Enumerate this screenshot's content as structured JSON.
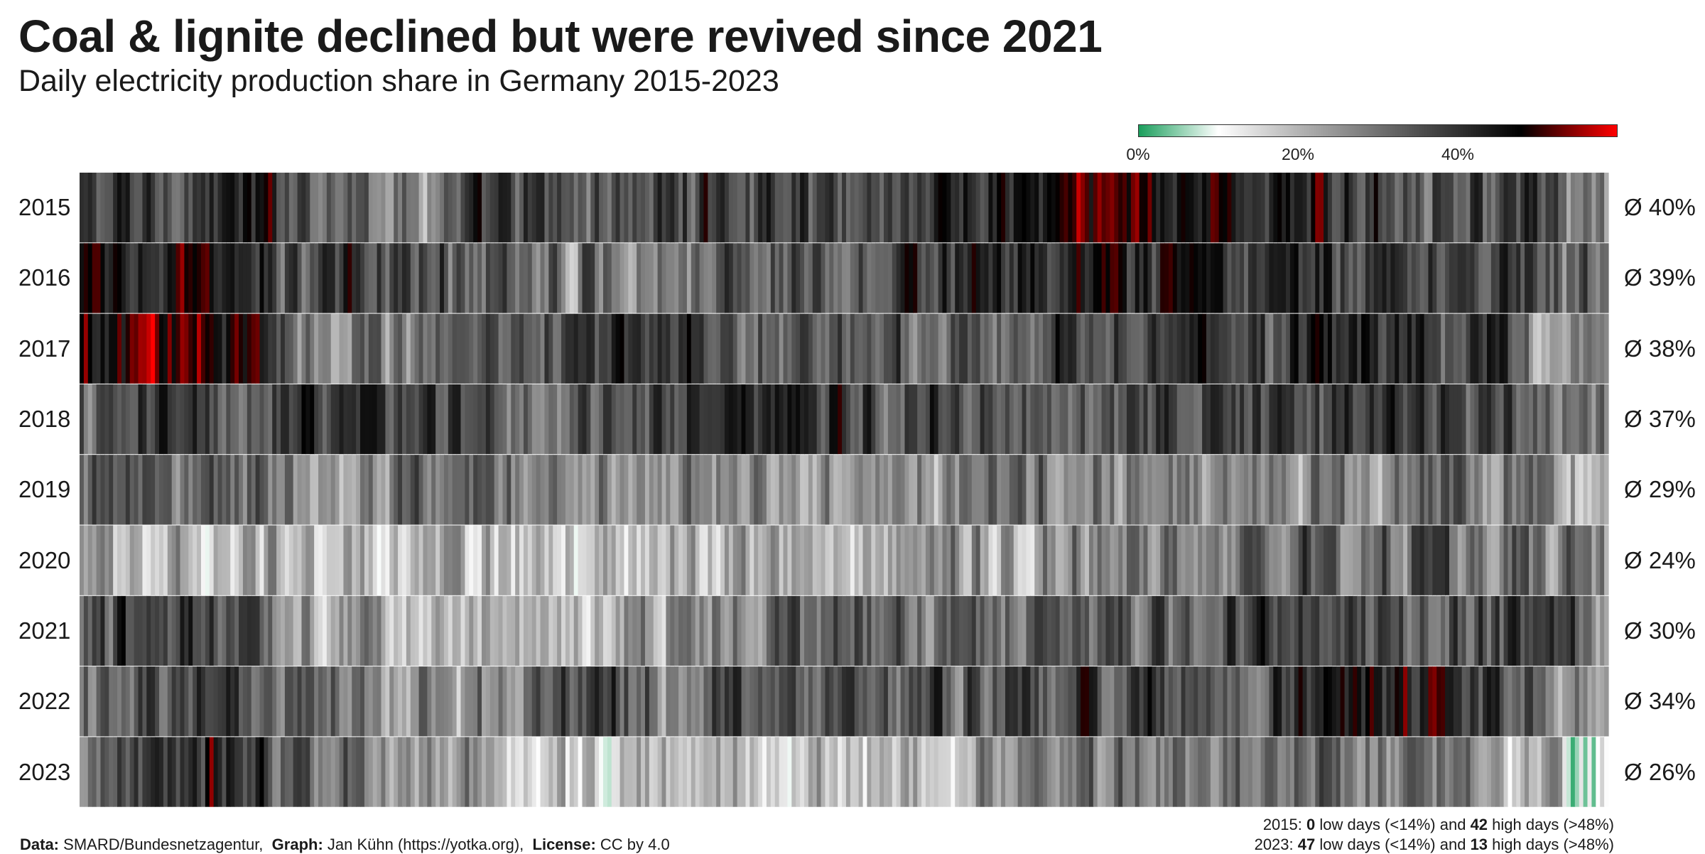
{
  "header": {
    "title": "Coal & lignite declined but were revived since 2021",
    "subtitle": "Daily electricity production share in Germany 2015-2023"
  },
  "colorscale": {
    "stops": [
      {
        "value": 0,
        "color": "#1a9e5c"
      },
      {
        "value": 10,
        "color": "#ffffff"
      },
      {
        "value": 20,
        "color": "#b4b4b4"
      },
      {
        "value": 35,
        "color": "#505050"
      },
      {
        "value": 48,
        "color": "#000000"
      },
      {
        "value": 60,
        "color": "#ff0000"
      }
    ],
    "tick_labels": [
      "0%",
      "20%",
      "40%"
    ],
    "tick_values": [
      0,
      20,
      40
    ]
  },
  "chart_data": {
    "type": "heatmap",
    "title": "Coal & lignite declined but were revived since 2021",
    "subtitle": "Daily electricity production share in Germany 2015-2023",
    "x_unit": "day of year",
    "value_unit": "% share of daily electricity production",
    "days_per_year": 365,
    "value_range": [
      0,
      60
    ],
    "years": [
      {
        "year": "2015",
        "average": 40,
        "average_label": "Ø 40%",
        "profile": [
          [
            1,
            36
          ],
          [
            20,
            40
          ],
          [
            45,
            42
          ],
          [
            60,
            37
          ],
          [
            80,
            30
          ],
          [
            100,
            36
          ],
          [
            120,
            35
          ],
          [
            140,
            38
          ],
          [
            160,
            40
          ],
          [
            180,
            38
          ],
          [
            200,
            40
          ],
          [
            220,
            44
          ],
          [
            238,
            48
          ],
          [
            250,
            52
          ],
          [
            265,
            48
          ],
          [
            280,
            44
          ],
          [
            300,
            42
          ],
          [
            320,
            40
          ],
          [
            340,
            38
          ],
          [
            355,
            30
          ],
          [
            365,
            26
          ]
        ]
      },
      {
        "year": "2016",
        "average": 39,
        "average_label": "Ø 39%",
        "profile": [
          [
            1,
            44
          ],
          [
            20,
            46
          ],
          [
            40,
            40
          ],
          [
            60,
            38
          ],
          [
            80,
            38
          ],
          [
            100,
            36
          ],
          [
            120,
            32
          ],
          [
            140,
            34
          ],
          [
            160,
            35
          ],
          [
            180,
            38
          ],
          [
            200,
            40
          ],
          [
            220,
            40
          ],
          [
            240,
            42
          ],
          [
            260,
            42
          ],
          [
            280,
            40
          ],
          [
            300,
            40
          ],
          [
            320,
            41
          ],
          [
            340,
            40
          ],
          [
            355,
            36
          ],
          [
            365,
            30
          ]
        ]
      },
      {
        "year": "2017",
        "average": 38,
        "average_label": "Ø 38%",
        "profile": [
          [
            1,
            44
          ],
          [
            15,
            52
          ],
          [
            30,
            55
          ],
          [
            45,
            40
          ],
          [
            60,
            30
          ],
          [
            80,
            32
          ],
          [
            100,
            38
          ],
          [
            120,
            40
          ],
          [
            140,
            38
          ],
          [
            160,
            34
          ],
          [
            180,
            36
          ],
          [
            200,
            36
          ],
          [
            220,
            34
          ],
          [
            240,
            40
          ],
          [
            260,
            40
          ],
          [
            280,
            38
          ],
          [
            300,
            42
          ],
          [
            320,
            40
          ],
          [
            340,
            36
          ],
          [
            355,
            24
          ],
          [
            365,
            20
          ]
        ]
      },
      {
        "year": "2018",
        "average": 37,
        "average_label": "Ø 37%",
        "profile": [
          [
            1,
            32
          ],
          [
            20,
            38
          ],
          [
            40,
            38
          ],
          [
            60,
            42
          ],
          [
            80,
            40
          ],
          [
            100,
            34
          ],
          [
            120,
            34
          ],
          [
            140,
            38
          ],
          [
            160,
            40
          ],
          [
            180,
            40
          ],
          [
            200,
            40
          ],
          [
            220,
            36
          ],
          [
            240,
            36
          ],
          [
            260,
            42
          ],
          [
            280,
            40
          ],
          [
            300,
            40
          ],
          [
            320,
            38
          ],
          [
            340,
            36
          ],
          [
            355,
            28
          ],
          [
            365,
            24
          ]
        ]
      },
      {
        "year": "2019",
        "average": 29,
        "average_label": "Ø 29%",
        "profile": [
          [
            1,
            30
          ],
          [
            20,
            36
          ],
          [
            40,
            35
          ],
          [
            60,
            24
          ],
          [
            80,
            30
          ],
          [
            100,
            32
          ],
          [
            120,
            30
          ],
          [
            140,
            28
          ],
          [
            160,
            26
          ],
          [
            180,
            28
          ],
          [
            200,
            30
          ],
          [
            220,
            28
          ],
          [
            240,
            30
          ],
          [
            260,
            30
          ],
          [
            280,
            24
          ],
          [
            300,
            28
          ],
          [
            320,
            34
          ],
          [
            340,
            30
          ],
          [
            355,
            24
          ],
          [
            365,
            20
          ]
        ]
      },
      {
        "year": "2020",
        "average": 24,
        "average_label": "Ø 24%",
        "profile": [
          [
            1,
            22
          ],
          [
            20,
            22
          ],
          [
            40,
            20
          ],
          [
            60,
            22
          ],
          [
            80,
            22
          ],
          [
            100,
            20
          ],
          [
            120,
            18
          ],
          [
            140,
            22
          ],
          [
            160,
            22
          ],
          [
            180,
            22
          ],
          [
            200,
            24
          ],
          [
            220,
            26
          ],
          [
            240,
            28
          ],
          [
            260,
            28
          ],
          [
            280,
            30
          ],
          [
            300,
            32
          ],
          [
            320,
            34
          ],
          [
            340,
            32
          ],
          [
            355,
            28
          ],
          [
            365,
            26
          ]
        ]
      },
      {
        "year": "2021",
        "average": 30,
        "average_label": "Ø 30%",
        "profile": [
          [
            1,
            36
          ],
          [
            20,
            38
          ],
          [
            40,
            32
          ],
          [
            60,
            26
          ],
          [
            80,
            24
          ],
          [
            100,
            22
          ],
          [
            120,
            24
          ],
          [
            140,
            28
          ],
          [
            160,
            30
          ],
          [
            180,
            32
          ],
          [
            200,
            32
          ],
          [
            220,
            34
          ],
          [
            240,
            32
          ],
          [
            260,
            34
          ],
          [
            280,
            36
          ],
          [
            300,
            34
          ],
          [
            320,
            34
          ],
          [
            340,
            36
          ],
          [
            355,
            38
          ],
          [
            365,
            20
          ]
        ]
      },
      {
        "year": "2022",
        "average": 34,
        "average_label": "Ø 34%",
        "profile": [
          [
            1,
            30
          ],
          [
            20,
            32
          ],
          [
            40,
            36
          ],
          [
            60,
            30
          ],
          [
            80,
            26
          ],
          [
            100,
            28
          ],
          [
            120,
            34
          ],
          [
            140,
            36
          ],
          [
            160,
            36
          ],
          [
            180,
            38
          ],
          [
            200,
            36
          ],
          [
            220,
            34
          ],
          [
            240,
            40
          ],
          [
            260,
            36
          ],
          [
            280,
            38
          ],
          [
            300,
            44
          ],
          [
            320,
            46
          ],
          [
            340,
            40
          ],
          [
            355,
            26
          ],
          [
            365,
            20
          ]
        ]
      },
      {
        "year": "2023",
        "average": 26,
        "average_label": "Ø 26%",
        "profile": [
          [
            1,
            30
          ],
          [
            15,
            36
          ],
          [
            30,
            44
          ],
          [
            45,
            36
          ],
          [
            60,
            34
          ],
          [
            80,
            26
          ],
          [
            100,
            22
          ],
          [
            120,
            18
          ],
          [
            140,
            18
          ],
          [
            160,
            20
          ],
          [
            180,
            22
          ],
          [
            200,
            24
          ],
          [
            220,
            26
          ],
          [
            240,
            28
          ],
          [
            260,
            30
          ],
          [
            280,
            30
          ],
          [
            300,
            32
          ],
          [
            320,
            28
          ],
          [
            340,
            26
          ],
          [
            355,
            14
          ],
          [
            365,
            10
          ]
        ]
      }
    ]
  },
  "footer": {
    "data_label": "Data:",
    "data_value": "SMARD/Bundesnetzagentur,",
    "graph_label": "Graph:",
    "graph_value": "Jan Kühn (https://yotka.org),",
    "license_label": "License:",
    "license_value": "CC by 4.0",
    "stats": [
      {
        "prefix": "2015:",
        "low": "0",
        "low_text": "low days (<14%) and",
        "high": "42",
        "high_text": "high days (>48%)"
      },
      {
        "prefix": "2023:",
        "low": "47",
        "low_text": "low days (<14%) and",
        "high": "13",
        "high_text": "high days (>48%)"
      }
    ]
  }
}
